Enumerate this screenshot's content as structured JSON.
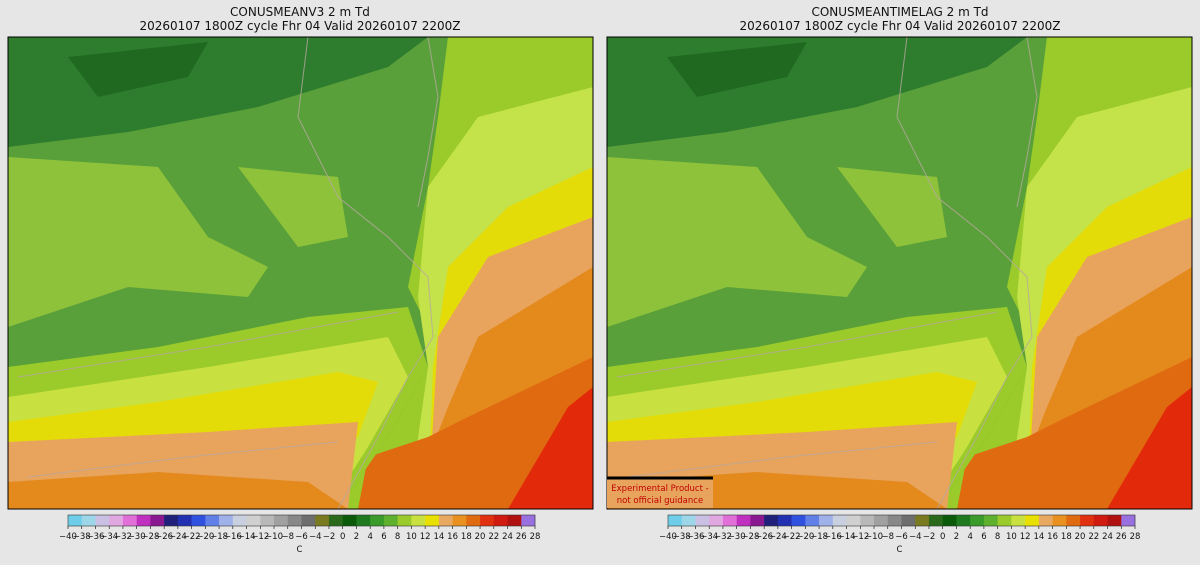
{
  "panels": [
    {
      "title": "CONUSMEANV3 2 m Td",
      "subtitle": "20260107 1800Z cycle Fhr 04 Valid 20260107 2200Z"
    },
    {
      "title": "CONUSMEANTIMELAG 2 m Td",
      "subtitle": "20260107 1800Z cycle Fhr 04 Valid 20260107 2200Z",
      "note": [
        "Experimental Product -",
        "not official guidance"
      ]
    }
  ],
  "colorbar": {
    "ticks": [
      "−40",
      "−38",
      "−36",
      "−34",
      "−32",
      "−30",
      "−28",
      "−26",
      "−24",
      "−22",
      "−20",
      "−18",
      "−16",
      "−14",
      "−12",
      "−10",
      "−8",
      "−6",
      "−4",
      "−2",
      "0",
      "2",
      "4",
      "6",
      "8",
      "10",
      "12",
      "14",
      "16",
      "18",
      "20",
      "22",
      "24",
      "26",
      "28"
    ],
    "unit": "C"
  }
}
